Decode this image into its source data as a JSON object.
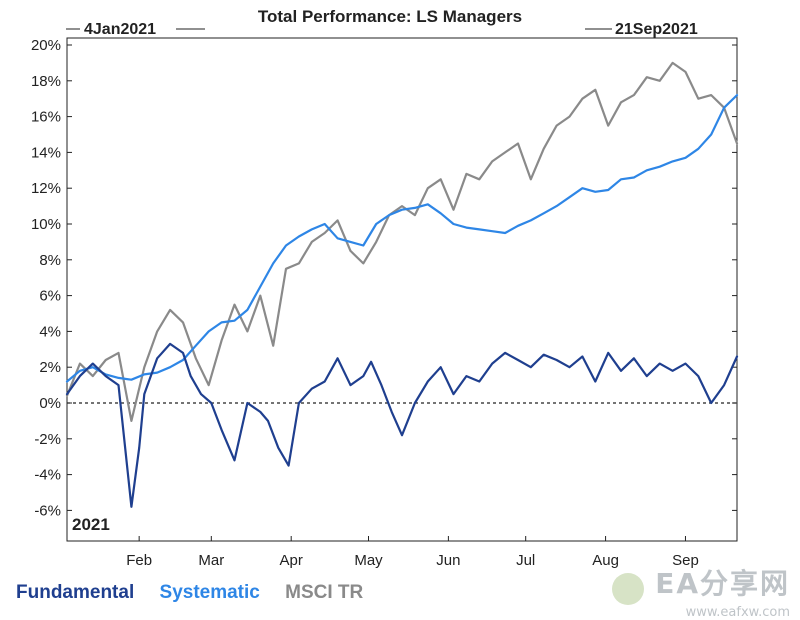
{
  "chart_data": {
    "type": "line",
    "title": "Total Performance: LS Managers",
    "start_label": "4Jan2021",
    "end_label": "21Sep2021",
    "year_label": "2021",
    "ylim": [
      -7,
      20
    ],
    "y_ticks": [
      "20%",
      "18%",
      "16%",
      "14%",
      "12%",
      "10%",
      "8%",
      "6%",
      "4%",
      "2%",
      "0%",
      "-2%",
      "-4%",
      "-6%"
    ],
    "y_tick_values": [
      20,
      18,
      16,
      14,
      12,
      10,
      8,
      6,
      4,
      2,
      0,
      -2,
      -4,
      -6
    ],
    "x_ticks": [
      "Feb",
      "Mar",
      "Apr",
      "May",
      "Jun",
      "Jul",
      "Aug",
      "Sep"
    ],
    "x_tick_days": [
      28,
      56,
      87,
      117,
      148,
      178,
      209,
      240
    ],
    "x_range_days": [
      0,
      260
    ],
    "zero_line": true,
    "series": [
      {
        "name": "Fundamental",
        "color": "#1f3f8f",
        "x": [
          0,
          5,
          10,
          15,
          20,
          25,
          28,
          30,
          35,
          40,
          45,
          48,
          52,
          56,
          60,
          65,
          70,
          75,
          78,
          82,
          86,
          90,
          95,
          100,
          105,
          110,
          115,
          118,
          122,
          126,
          130,
          135,
          140,
          145,
          150,
          155,
          160,
          165,
          170,
          175,
          180,
          185,
          190,
          195,
          200,
          205,
          210,
          215,
          220,
          225,
          230,
          235,
          240,
          245,
          250,
          255,
          260
        ],
        "y": [
          0.5,
          1.5,
          2.2,
          1.5,
          1.0,
          -5.8,
          -2.5,
          0.5,
          2.5,
          3.3,
          2.8,
          1.5,
          0.5,
          0.0,
          -1.5,
          -3.2,
          0.0,
          -0.5,
          -1.0,
          -2.5,
          -3.5,
          0.0,
          0.8,
          1.2,
          2.5,
          1.0,
          1.5,
          2.3,
          1.0,
          -0.5,
          -1.8,
          0.0,
          1.2,
          2.0,
          0.5,
          1.5,
          1.2,
          2.2,
          2.8,
          2.4,
          2.0,
          2.7,
          2.4,
          2.0,
          2.6,
          1.2,
          2.8,
          1.8,
          2.5,
          1.5,
          2.2,
          1.8,
          2.2,
          1.5,
          0.0,
          1.0,
          2.6
        ]
      },
      {
        "name": "Systematic",
        "color": "#2e86e6",
        "x": [
          0,
          5,
          10,
          15,
          20,
          25,
          30,
          35,
          40,
          45,
          50,
          55,
          60,
          65,
          70,
          75,
          80,
          85,
          90,
          95,
          100,
          105,
          110,
          115,
          120,
          125,
          130,
          135,
          140,
          145,
          150,
          155,
          160,
          165,
          170,
          175,
          180,
          185,
          190,
          195,
          200,
          205,
          210,
          215,
          220,
          225,
          230,
          235,
          240,
          245,
          250,
          255,
          260
        ],
        "y": [
          1.2,
          1.8,
          2.0,
          1.6,
          1.4,
          1.3,
          1.6,
          1.7,
          2.0,
          2.4,
          3.2,
          4.0,
          4.5,
          4.6,
          5.2,
          6.5,
          7.8,
          8.8,
          9.3,
          9.7,
          10.0,
          9.2,
          9.0,
          8.8,
          10.0,
          10.5,
          10.8,
          10.9,
          11.1,
          10.6,
          10.0,
          9.8,
          9.7,
          9.6,
          9.5,
          9.9,
          10.2,
          10.6,
          11.0,
          11.5,
          12.0,
          11.8,
          11.9,
          12.5,
          12.6,
          13.0,
          13.2,
          13.5,
          13.7,
          14.2,
          15.0,
          16.5,
          17.2
        ]
      },
      {
        "name": "MSCI TR",
        "color": "#8a8a8a",
        "x": [
          0,
          5,
          10,
          15,
          20,
          25,
          30,
          35,
          40,
          45,
          50,
          55,
          60,
          65,
          70,
          75,
          80,
          85,
          90,
          95,
          100,
          105,
          110,
          115,
          120,
          125,
          130,
          135,
          140,
          145,
          150,
          155,
          160,
          165,
          170,
          175,
          180,
          185,
          190,
          195,
          200,
          205,
          210,
          215,
          220,
          225,
          230,
          235,
          240,
          245,
          250,
          255,
          260
        ],
        "y": [
          0.4,
          2.2,
          1.5,
          2.4,
          2.8,
          -1.0,
          2.0,
          4.0,
          5.2,
          4.5,
          2.5,
          1.0,
          3.5,
          5.5,
          4.0,
          6.0,
          3.2,
          7.5,
          7.8,
          9.0,
          9.5,
          10.2,
          8.5,
          7.8,
          9.0,
          10.5,
          11.0,
          10.5,
          12.0,
          12.5,
          10.8,
          12.8,
          12.5,
          13.5,
          14.0,
          14.5,
          12.5,
          14.2,
          15.5,
          16.0,
          17.0,
          17.5,
          15.5,
          16.8,
          17.2,
          18.2,
          18.0,
          19.0,
          18.5,
          17.0,
          17.2,
          16.5,
          14.5
        ]
      }
    ]
  },
  "legend": {
    "items": [
      {
        "label": "Fundamental",
        "color": "#1f3f8f"
      },
      {
        "label": "Systematic",
        "color": "#2e86e6"
      },
      {
        "label": "MSCI TR",
        "color": "#8a8a8a"
      }
    ]
  },
  "watermark": {
    "main_text": "EA分享网",
    "url_text": "www.eafxw.com"
  }
}
